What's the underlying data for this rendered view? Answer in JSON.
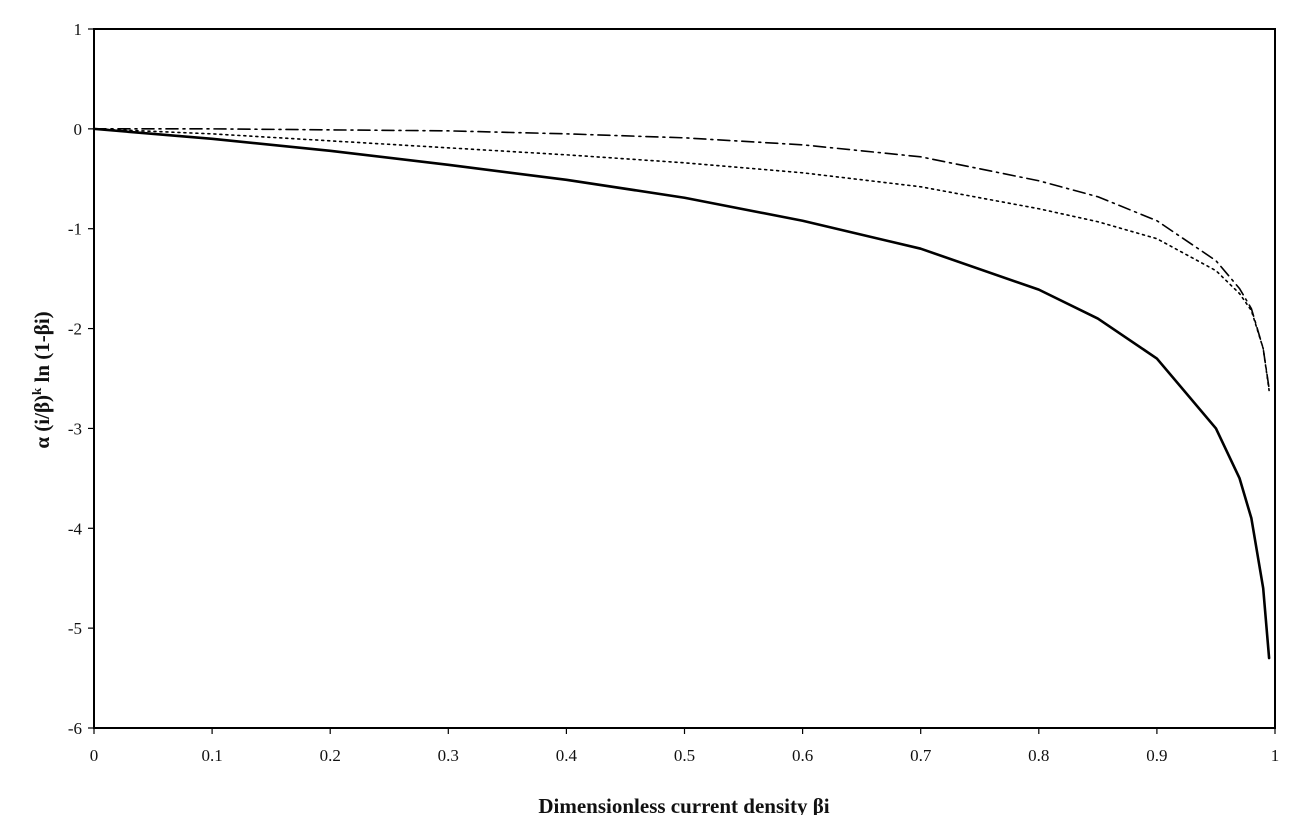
{
  "chart_data": {
    "type": "line",
    "xlabel": "Dimensionless current density βi",
    "ylabel": "α (i/β)",
    "ylabel_superscript": "k",
    "ylabel_suffix": " ln (1-βi)",
    "xlim": [
      0,
      1
    ],
    "ylim": [
      -6,
      1
    ],
    "x_ticks": [
      "0",
      "0.1",
      "0.2",
      "0.3",
      "0.4",
      "0.5",
      "0.6",
      "0.7",
      "0.8",
      "0.9",
      "1"
    ],
    "y_ticks": [
      "1",
      "0",
      "-1",
      "-2",
      "-3",
      "-4",
      "-5",
      "-6"
    ],
    "grid": false,
    "legend": "none",
    "series": [
      {
        "style": "solid",
        "x": [
          0,
          0.1,
          0.2,
          0.3,
          0.4,
          0.5,
          0.6,
          0.7,
          0.8,
          0.85,
          0.9,
          0.95,
          0.97,
          0.98,
          0.99,
          0.995
        ],
        "y": [
          0,
          -0.1,
          -0.22,
          -0.36,
          -0.51,
          -0.69,
          -0.92,
          -1.2,
          -1.61,
          -1.9,
          -2.3,
          -3.0,
          -3.5,
          -3.9,
          -4.6,
          -5.3
        ]
      },
      {
        "style": "dotted",
        "x": [
          0,
          0.1,
          0.2,
          0.3,
          0.4,
          0.5,
          0.6,
          0.7,
          0.8,
          0.85,
          0.9,
          0.95,
          0.97,
          0.98,
          0.99,
          0.995
        ],
        "y": [
          0,
          -0.05,
          -0.12,
          -0.19,
          -0.26,
          -0.34,
          -0.44,
          -0.58,
          -0.8,
          -0.93,
          -1.1,
          -1.42,
          -1.65,
          -1.82,
          -2.2,
          -2.62
        ]
      },
      {
        "style": "dash-dot",
        "x": [
          0,
          0.1,
          0.2,
          0.3,
          0.4,
          0.5,
          0.6,
          0.7,
          0.8,
          0.85,
          0.9,
          0.95,
          0.97,
          0.98,
          0.99,
          0.995
        ],
        "y": [
          0,
          0.0,
          -0.01,
          -0.02,
          -0.05,
          -0.09,
          -0.16,
          -0.28,
          -0.52,
          -0.68,
          -0.92,
          -1.32,
          -1.6,
          -1.8,
          -2.2,
          -2.6
        ]
      }
    ]
  }
}
